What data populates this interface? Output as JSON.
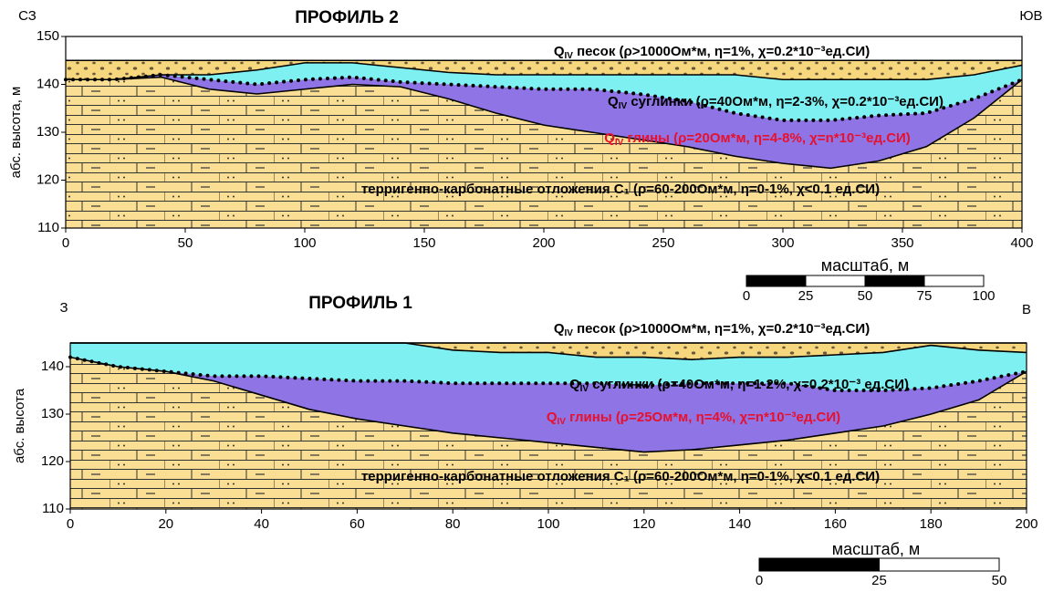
{
  "chart_data": [
    {
      "type": "area",
      "title": "ПРОФИЛЬ 2",
      "left_label": "СЗ",
      "right_label": "ЮВ",
      "ylabel": "абс. высота, м",
      "xlim": [
        0,
        400
      ],
      "ylim": [
        110,
        150
      ],
      "xticks": [
        0,
        50,
        100,
        150,
        200,
        250,
        300,
        350,
        400
      ],
      "yticks": [
        110,
        120,
        130,
        140,
        150
      ],
      "x": [
        0,
        20,
        40,
        60,
        80,
        100,
        120,
        140,
        160,
        180,
        200,
        220,
        240,
        260,
        280,
        300,
        320,
        340,
        360,
        380,
        400
      ],
      "series": [
        {
          "name": "QIV песок (ρ>1000Ом*м, η=1%, χ=0.2*10⁻³ед.СИ)",
          "color": "#f6d77e",
          "values": [
            145,
            145,
            145,
            145,
            145,
            145,
            145,
            145,
            145,
            145,
            145,
            145,
            145,
            145,
            145,
            145,
            145,
            145,
            145,
            145,
            145
          ]
        },
        {
          "name": "QIV суглинки (ρ=40Ом*м, η=2-3%, χ=0.2*10⁻³ед.СИ)",
          "color": "#7ef0f2",
          "values": [
            141,
            141,
            142,
            142,
            143,
            144.5,
            144.5,
            143.5,
            142.5,
            142,
            142,
            142,
            142,
            142,
            142,
            141,
            141,
            141,
            141,
            142,
            144
          ]
        },
        {
          "name": "QIV глины (ρ=20Ом*м, η=4-8%, χ=n*10⁻³ед.СИ)",
          "color": "#8f74e6",
          "values": [
            141,
            141,
            142,
            141,
            140,
            141,
            141.5,
            140.5,
            140,
            139.5,
            139,
            139,
            138,
            136.5,
            134,
            132.5,
            132.5,
            133.5,
            134,
            137,
            141
          ]
        },
        {
          "name": "терригенно-карбонатные отложения C₁ (ρ=60-200Ом*м, η=0-1%, χ<0.1 ед.СИ)",
          "color": "#f9de93",
          "values": [
            141,
            141,
            141.5,
            139,
            138,
            139,
            140,
            139.5,
            137,
            134,
            131.5,
            130,
            128.5,
            127,
            125,
            123.5,
            122.5,
            124,
            127,
            133,
            141
          ]
        }
      ],
      "scale": {
        "label": "масштаб, м",
        "ticks": [
          0,
          25,
          50,
          75,
          100
        ]
      }
    },
    {
      "type": "area",
      "title": "ПРОФИЛЬ 1",
      "left_label": "З",
      "right_label": "В",
      "ylabel": "абс. высота",
      "xlim": [
        0,
        200
      ],
      "ylim": [
        110,
        145
      ],
      "xticks": [
        0,
        20,
        40,
        60,
        80,
        100,
        120,
        140,
        160,
        180,
        200
      ],
      "yticks": [
        110,
        120,
        130,
        140
      ],
      "x": [
        0,
        10,
        20,
        30,
        40,
        50,
        60,
        70,
        80,
        90,
        100,
        110,
        120,
        130,
        140,
        150,
        160,
        170,
        180,
        190,
        200
      ],
      "series": [
        {
          "name": "QIV песок (ρ>1000Ом*м, η=1%, χ=0.2*10⁻³ед.СИ)",
          "color": "#f6d77e",
          "values": [
            145,
            145,
            145,
            145,
            145,
            145,
            145,
            145,
            145,
            145,
            145,
            145,
            145,
            145,
            145,
            145,
            145,
            145,
            145,
            145,
            145
          ]
        },
        {
          "name": "QIV суглинки (ρ=40Ом*м, η=1-2%, χ=0.2*10⁻³ ед.СИ)",
          "color": "#7ef0f2",
          "values": [
            145,
            145,
            145,
            145,
            145,
            145,
            145,
            145,
            143.5,
            143,
            143,
            142,
            142,
            141.5,
            142,
            142,
            142.5,
            143,
            144.5,
            143.5,
            143
          ]
        },
        {
          "name": "QIV глины (ρ=25Ом*м, η=4%, χ=n*10⁻³ед.СИ)",
          "color": "#8f74e6",
          "values": [
            142,
            140,
            139,
            138,
            138,
            137.5,
            137,
            137,
            136.5,
            136.5,
            136.5,
            136.5,
            136,
            136.5,
            136.5,
            136.5,
            135,
            135,
            135.5,
            137,
            139
          ]
        },
        {
          "name": "терригенно-карбонатные отложения C₁ (ρ=60-200Ом*м, η=0-1%, χ<0.1 ед.СИ)",
          "color": "#f9de93",
          "values": [
            142,
            140,
            139,
            137,
            134,
            131,
            129,
            127.5,
            126,
            125,
            124,
            123,
            122,
            122.5,
            123.5,
            124.5,
            126,
            127.5,
            130,
            133,
            139
          ]
        }
      ],
      "scale": {
        "label": "масштаб, м",
        "ticks": [
          0,
          25,
          50
        ]
      }
    }
  ]
}
